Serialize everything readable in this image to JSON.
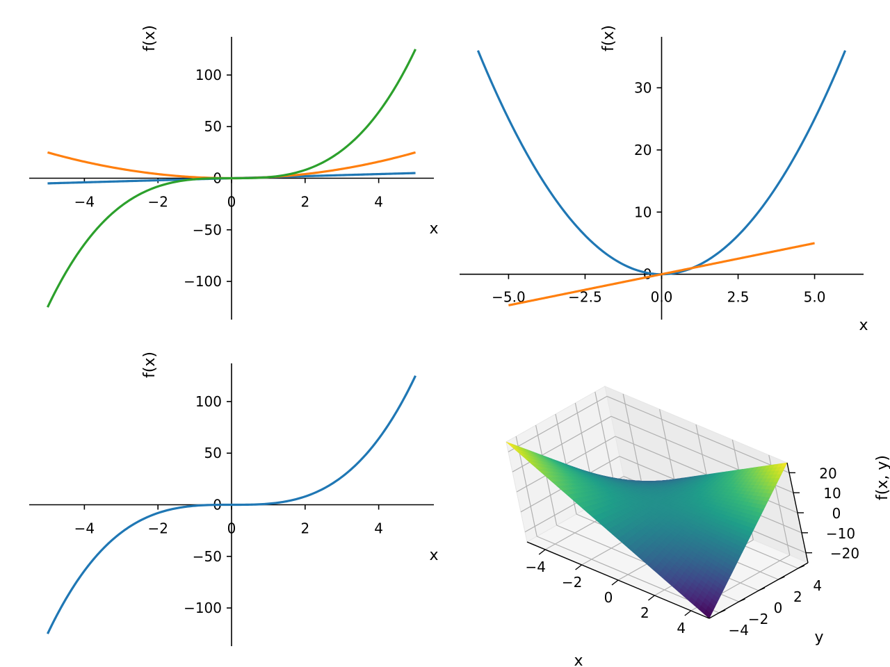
{
  "chart_data": [
    {
      "type": "line",
      "xlabel": "x",
      "ylabel": "f(x)",
      "xlim": [
        -5.5,
        5.5
      ],
      "ylim": [
        -137,
        137
      ],
      "xticks": [
        -4,
        -2,
        0,
        2,
        4
      ],
      "yticks": [
        -100,
        -50,
        0,
        50,
        100
      ],
      "xtick_labels": [
        "−4",
        "−2",
        "0",
        "2",
        "4"
      ],
      "ytick_labels": [
        "−100",
        "−50",
        "0",
        "50",
        "100"
      ],
      "x_range": [
        -5,
        5
      ],
      "series": [
        {
          "expr": "x",
          "color": "#1f77b4"
        },
        {
          "expr": "x^2",
          "color": "#ff7f0e"
        },
        {
          "expr": "x^3",
          "color": "#2ca02c"
        }
      ]
    },
    {
      "type": "line",
      "xlabel": "x",
      "ylabel": "f(x)",
      "xlim": [
        -6.6,
        6.6
      ],
      "ylim": [
        -7.3,
        38.2
      ],
      "xticks": [
        -5,
        -2.5,
        0,
        2.5,
        5
      ],
      "yticks": [
        0,
        10,
        20,
        30
      ],
      "xtick_labels": [
        "−5.0",
        "−2.5",
        "0.0",
        "2.5",
        "5.0"
      ],
      "ytick_labels": [
        "0",
        "10",
        "20",
        "30"
      ],
      "series": [
        {
          "expr": "x^2",
          "x_range": [
            -6,
            6
          ],
          "color": "#1f77b4"
        },
        {
          "expr": "x",
          "x_range": [
            -5,
            5
          ],
          "color": "#ff7f0e"
        }
      ]
    },
    {
      "type": "line",
      "xlabel": "x",
      "ylabel": "f(x)",
      "xlim": [
        -5.5,
        5.5
      ],
      "ylim": [
        -137,
        137
      ],
      "xticks": [
        -4,
        -2,
        0,
        2,
        4
      ],
      "yticks": [
        -100,
        -50,
        0,
        50,
        100
      ],
      "xtick_labels": [
        "−4",
        "−2",
        "0",
        "2",
        "4"
      ],
      "ytick_labels": [
        "−100",
        "−50",
        "0",
        "50",
        "100"
      ],
      "x_range": [
        -5,
        5
      ],
      "series": [
        {
          "expr": "x^3",
          "color": "#1f77b4"
        }
      ]
    },
    {
      "type": "surface",
      "expr": "x*y",
      "xlabel": "x",
      "ylabel": "y",
      "zlabel": "f(x, y)",
      "x_range": [
        -5,
        5
      ],
      "y_range": [
        -5,
        5
      ],
      "z_range": [
        -25,
        25
      ],
      "xticks": [
        -4,
        -2,
        0,
        2,
        4
      ],
      "yticks": [
        -4,
        -2,
        0,
        2,
        4
      ],
      "zticks": [
        -20,
        -10,
        0,
        10,
        20
      ],
      "xtick_labels": [
        "−4",
        "−2",
        "0",
        "2",
        "4"
      ],
      "ytick_labels": [
        "−4",
        "−2",
        "0",
        "2",
        "4"
      ],
      "ztick_labels": [
        "−20",
        "−10",
        "0",
        "10",
        "20"
      ],
      "colormap": "viridis"
    }
  ]
}
